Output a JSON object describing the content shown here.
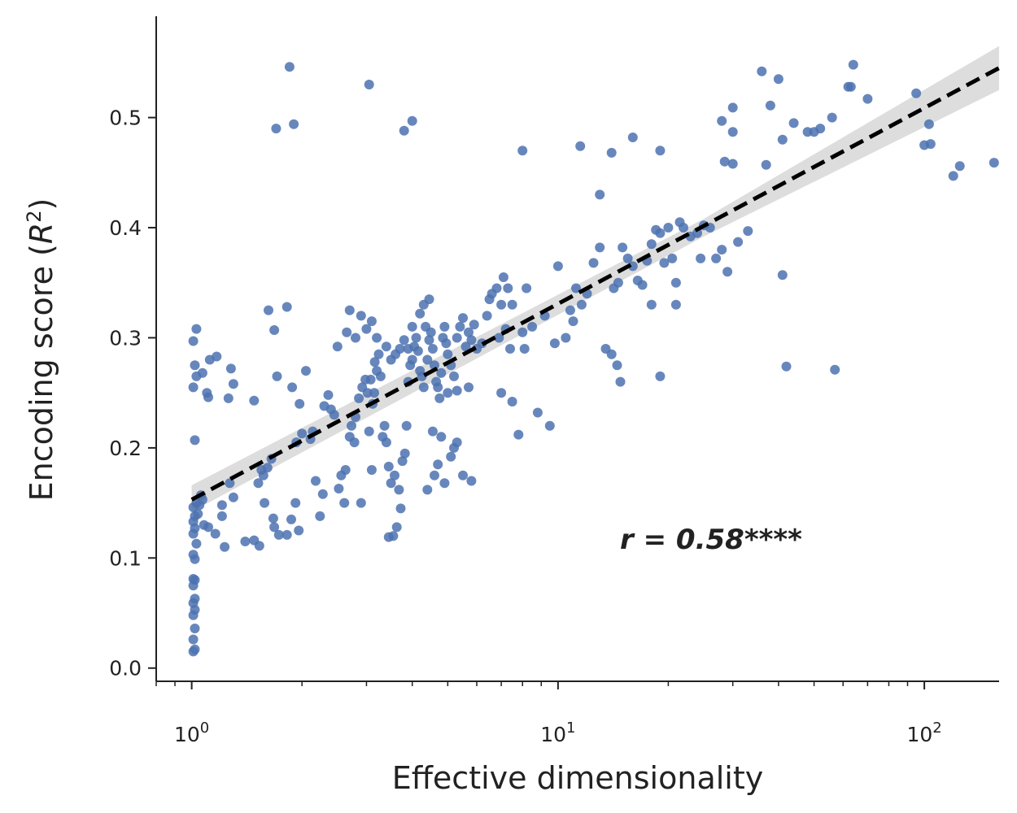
{
  "chart_data": {
    "type": "scatter",
    "title": "",
    "xlabel": "Effective dimensionality",
    "ylabel": "Encoding score (R²)",
    "ylabel_parts": {
      "text": "Encoding score (",
      "symbol": "R",
      "exp": "2",
      "close": ")"
    },
    "xscale": "log",
    "xlim": [
      0.8,
      160
    ],
    "ylim": [
      -0.012,
      0.592
    ],
    "x_ticks": [
      {
        "base": "10",
        "exp": "0",
        "value": 1
      },
      {
        "base": "10",
        "exp": "1",
        "value": 10
      },
      {
        "base": "10",
        "exp": "2",
        "value": 100
      }
    ],
    "y_ticks": [
      {
        "label": "0.0",
        "value": 0.0
      },
      {
        "label": "0.1",
        "value": 0.1
      },
      {
        "label": "0.2",
        "value": 0.2
      },
      {
        "label": "0.3",
        "value": 0.3
      },
      {
        "label": "0.4",
        "value": 0.4
      },
      {
        "label": "0.5",
        "value": 0.5
      }
    ],
    "annotation": "r = 0.58****",
    "grid": false,
    "colors": {
      "points": "#4c72b0",
      "fit_line": "#000000",
      "confidence_band": "#d9d9d9",
      "axes": "#222222"
    },
    "fit_line": {
      "x": [
        1.0,
        160
      ],
      "y": [
        0.153,
        0.545
      ]
    },
    "confidence_band": {
      "x": [
        1.0,
        25,
        160
      ],
      "lower": [
        0.142,
        0.392,
        0.525
      ],
      "upper": [
        0.166,
        0.408,
        0.565
      ]
    },
    "points": [
      {
        "x": 1.01,
        "y": 0.015
      },
      {
        "x": 1.02,
        "y": 0.017
      },
      {
        "x": 1.01,
        "y": 0.026
      },
      {
        "x": 1.02,
        "y": 0.036
      },
      {
        "x": 1.01,
        "y": 0.048
      },
      {
        "x": 1.02,
        "y": 0.053
      },
      {
        "x": 1.01,
        "y": 0.059
      },
      {
        "x": 1.02,
        "y": 0.063
      },
      {
        "x": 1.01,
        "y": 0.075
      },
      {
        "x": 1.02,
        "y": 0.08
      },
      {
        "x": 1.01,
        "y": 0.081
      },
      {
        "x": 1.02,
        "y": 0.099
      },
      {
        "x": 1.01,
        "y": 0.103
      },
      {
        "x": 1.03,
        "y": 0.113
      },
      {
        "x": 1.01,
        "y": 0.122
      },
      {
        "x": 1.02,
        "y": 0.127
      },
      {
        "x": 1.01,
        "y": 0.133
      },
      {
        "x": 1.02,
        "y": 0.138
      },
      {
        "x": 1.04,
        "y": 0.14
      },
      {
        "x": 1.01,
        "y": 0.146
      },
      {
        "x": 1.05,
        "y": 0.148
      },
      {
        "x": 1.03,
        "y": 0.15
      },
      {
        "x": 1.07,
        "y": 0.153
      },
      {
        "x": 1.06,
        "y": 0.157
      },
      {
        "x": 1.02,
        "y": 0.207
      },
      {
        "x": 1.01,
        "y": 0.255
      },
      {
        "x": 1.03,
        "y": 0.265
      },
      {
        "x": 1.02,
        "y": 0.275
      },
      {
        "x": 1.01,
        "y": 0.297
      },
      {
        "x": 1.03,
        "y": 0.308
      },
      {
        "x": 1.07,
        "y": 0.268
      },
      {
        "x": 1.1,
        "y": 0.25
      },
      {
        "x": 1.11,
        "y": 0.246
      },
      {
        "x": 1.12,
        "y": 0.28
      },
      {
        "x": 1.17,
        "y": 0.283
      },
      {
        "x": 1.08,
        "y": 0.13
      },
      {
        "x": 1.11,
        "y": 0.128
      },
      {
        "x": 1.16,
        "y": 0.122
      },
      {
        "x": 1.21,
        "y": 0.138
      },
      {
        "x": 1.23,
        "y": 0.11
      },
      {
        "x": 1.21,
        "y": 0.148
      },
      {
        "x": 1.3,
        "y": 0.155
      },
      {
        "x": 1.27,
        "y": 0.168
      },
      {
        "x": 1.26,
        "y": 0.245
      },
      {
        "x": 1.3,
        "y": 0.258
      },
      {
        "x": 1.28,
        "y": 0.272
      },
      {
        "x": 1.48,
        "y": 0.243
      },
      {
        "x": 1.4,
        "y": 0.115
      },
      {
        "x": 1.48,
        "y": 0.116
      },
      {
        "x": 1.53,
        "y": 0.111
      },
      {
        "x": 1.58,
        "y": 0.15
      },
      {
        "x": 1.52,
        "y": 0.168
      },
      {
        "x": 1.57,
        "y": 0.175
      },
      {
        "x": 1.55,
        "y": 0.18
      },
      {
        "x": 1.61,
        "y": 0.182
      },
      {
        "x": 1.65,
        "y": 0.19
      },
      {
        "x": 1.68,
        "y": 0.128
      },
      {
        "x": 1.73,
        "y": 0.121
      },
      {
        "x": 1.67,
        "y": 0.136
      },
      {
        "x": 1.82,
        "y": 0.121
      },
      {
        "x": 1.87,
        "y": 0.135
      },
      {
        "x": 1.92,
        "y": 0.15
      },
      {
        "x": 1.96,
        "y": 0.125
      },
      {
        "x": 1.62,
        "y": 0.325
      },
      {
        "x": 1.68,
        "y": 0.307
      },
      {
        "x": 1.71,
        "y": 0.265
      },
      {
        "x": 1.82,
        "y": 0.328
      },
      {
        "x": 1.88,
        "y": 0.255
      },
      {
        "x": 1.93,
        "y": 0.205
      },
      {
        "x": 1.97,
        "y": 0.24
      },
      {
        "x": 2.05,
        "y": 0.27
      },
      {
        "x": 2.0,
        "y": 0.213
      },
      {
        "x": 2.11,
        "y": 0.208
      },
      {
        "x": 2.14,
        "y": 0.215
      },
      {
        "x": 2.18,
        "y": 0.17
      },
      {
        "x": 2.24,
        "y": 0.138
      },
      {
        "x": 2.28,
        "y": 0.158
      },
      {
        "x": 2.3,
        "y": 0.238
      },
      {
        "x": 2.36,
        "y": 0.248
      },
      {
        "x": 2.4,
        "y": 0.235
      },
      {
        "x": 2.45,
        "y": 0.23
      },
      {
        "x": 2.5,
        "y": 0.292
      },
      {
        "x": 2.52,
        "y": 0.163
      },
      {
        "x": 2.56,
        "y": 0.175
      },
      {
        "x": 2.61,
        "y": 0.15
      },
      {
        "x": 2.63,
        "y": 0.18
      },
      {
        "x": 2.7,
        "y": 0.21
      },
      {
        "x": 2.73,
        "y": 0.22
      },
      {
        "x": 2.78,
        "y": 0.205
      },
      {
        "x": 2.8,
        "y": 0.228
      },
      {
        "x": 2.86,
        "y": 0.245
      },
      {
        "x": 2.92,
        "y": 0.255
      },
      {
        "x": 2.98,
        "y": 0.262
      },
      {
        "x": 3.02,
        "y": 0.25
      },
      {
        "x": 3.08,
        "y": 0.262
      },
      {
        "x": 3.12,
        "y": 0.24
      },
      {
        "x": 3.16,
        "y": 0.278
      },
      {
        "x": 3.2,
        "y": 0.27
      },
      {
        "x": 3.24,
        "y": 0.285
      },
      {
        "x": 3.28,
        "y": 0.265
      },
      {
        "x": 3.32,
        "y": 0.21
      },
      {
        "x": 3.36,
        "y": 0.22
      },
      {
        "x": 3.4,
        "y": 0.205
      },
      {
        "x": 3.45,
        "y": 0.183
      },
      {
        "x": 3.5,
        "y": 0.168
      },
      {
        "x": 3.58,
        "y": 0.175
      },
      {
        "x": 3.63,
        "y": 0.128
      },
      {
        "x": 3.68,
        "y": 0.162
      },
      {
        "x": 3.72,
        "y": 0.145
      },
      {
        "x": 3.76,
        "y": 0.188
      },
      {
        "x": 3.82,
        "y": 0.195
      },
      {
        "x": 3.86,
        "y": 0.22
      },
      {
        "x": 3.9,
        "y": 0.26
      },
      {
        "x": 3.95,
        "y": 0.275
      },
      {
        "x": 4.0,
        "y": 0.28
      },
      {
        "x": 4.05,
        "y": 0.292
      },
      {
        "x": 4.1,
        "y": 0.3
      },
      {
        "x": 4.15,
        "y": 0.288
      },
      {
        "x": 4.2,
        "y": 0.27
      },
      {
        "x": 4.25,
        "y": 0.265
      },
      {
        "x": 4.3,
        "y": 0.255
      },
      {
        "x": 4.35,
        "y": 0.31
      },
      {
        "x": 4.4,
        "y": 0.28
      },
      {
        "x": 4.45,
        "y": 0.298
      },
      {
        "x": 4.5,
        "y": 0.305
      },
      {
        "x": 4.55,
        "y": 0.29
      },
      {
        "x": 4.6,
        "y": 0.275
      },
      {
        "x": 4.65,
        "y": 0.26
      },
      {
        "x": 4.7,
        "y": 0.255
      },
      {
        "x": 4.75,
        "y": 0.245
      },
      {
        "x": 4.8,
        "y": 0.268
      },
      {
        "x": 4.85,
        "y": 0.3
      },
      {
        "x": 4.9,
        "y": 0.31
      },
      {
        "x": 4.95,
        "y": 0.295
      },
      {
        "x": 5.0,
        "y": 0.285
      },
      {
        "x": 5.1,
        "y": 0.275
      },
      {
        "x": 5.2,
        "y": 0.265
      },
      {
        "x": 5.3,
        "y": 0.3
      },
      {
        "x": 5.4,
        "y": 0.31
      },
      {
        "x": 5.5,
        "y": 0.318
      },
      {
        "x": 5.6,
        "y": 0.292
      },
      {
        "x": 5.7,
        "y": 0.305
      },
      {
        "x": 5.8,
        "y": 0.298
      },
      {
        "x": 4.4,
        "y": 0.162
      },
      {
        "x": 4.6,
        "y": 0.175
      },
      {
        "x": 4.7,
        "y": 0.185
      },
      {
        "x": 4.9,
        "y": 0.168
      },
      {
        "x": 5.1,
        "y": 0.192
      },
      {
        "x": 5.2,
        "y": 0.2
      },
      {
        "x": 5.3,
        "y": 0.205
      },
      {
        "x": 5.5,
        "y": 0.175
      },
      {
        "x": 5.8,
        "y": 0.17
      },
      {
        "x": 4.8,
        "y": 0.21
      },
      {
        "x": 4.55,
        "y": 0.215
      },
      {
        "x": 5.0,
        "y": 0.25
      },
      {
        "x": 5.3,
        "y": 0.252
      },
      {
        "x": 5.7,
        "y": 0.255
      },
      {
        "x": 3.55,
        "y": 0.12
      },
      {
        "x": 3.45,
        "y": 0.119
      },
      {
        "x": 2.9,
        "y": 0.15
      },
      {
        "x": 3.05,
        "y": 0.215
      },
      {
        "x": 3.1,
        "y": 0.18
      },
      {
        "x": 3.15,
        "y": 0.25
      },
      {
        "x": 2.9,
        "y": 0.32
      },
      {
        "x": 3.0,
        "y": 0.308
      },
      {
        "x": 3.1,
        "y": 0.315
      },
      {
        "x": 2.7,
        "y": 0.325
      },
      {
        "x": 2.65,
        "y": 0.305
      },
      {
        "x": 2.8,
        "y": 0.3
      },
      {
        "x": 3.2,
        "y": 0.3
      },
      {
        "x": 3.4,
        "y": 0.292
      },
      {
        "x": 3.5,
        "y": 0.28
      },
      {
        "x": 3.6,
        "y": 0.285
      },
      {
        "x": 3.7,
        "y": 0.29
      },
      {
        "x": 3.8,
        "y": 0.298
      },
      {
        "x": 3.9,
        "y": 0.29
      },
      {
        "x": 4.0,
        "y": 0.31
      },
      {
        "x": 4.2,
        "y": 0.322
      },
      {
        "x": 4.3,
        "y": 0.33
      },
      {
        "x": 4.45,
        "y": 0.335
      },
      {
        "x": 5.9,
        "y": 0.312
      },
      {
        "x": 6.0,
        "y": 0.29
      },
      {
        "x": 6.2,
        "y": 0.295
      },
      {
        "x": 6.4,
        "y": 0.32
      },
      {
        "x": 6.5,
        "y": 0.335
      },
      {
        "x": 6.6,
        "y": 0.34
      },
      {
        "x": 6.8,
        "y": 0.345
      },
      {
        "x": 7.0,
        "y": 0.33
      },
      {
        "x": 7.1,
        "y": 0.355
      },
      {
        "x": 7.3,
        "y": 0.345
      },
      {
        "x": 7.5,
        "y": 0.33
      },
      {
        "x": 7.2,
        "y": 0.308
      },
      {
        "x": 6.9,
        "y": 0.3
      },
      {
        "x": 7.4,
        "y": 0.29
      },
      {
        "x": 7.0,
        "y": 0.25
      },
      {
        "x": 7.5,
        "y": 0.242
      },
      {
        "x": 7.8,
        "y": 0.212
      },
      {
        "x": 8.1,
        "y": 0.29
      },
      {
        "x": 8.5,
        "y": 0.31
      },
      {
        "x": 8.0,
        "y": 0.305
      },
      {
        "x": 8.2,
        "y": 0.345
      },
      {
        "x": 8.8,
        "y": 0.232
      },
      {
        "x": 9.5,
        "y": 0.22
      },
      {
        "x": 9.2,
        "y": 0.32
      },
      {
        "x": 9.8,
        "y": 0.295
      },
      {
        "x": 10.0,
        "y": 0.365
      },
      {
        "x": 10.5,
        "y": 0.3
      },
      {
        "x": 10.8,
        "y": 0.325
      },
      {
        "x": 11.0,
        "y": 0.315
      },
      {
        "x": 11.2,
        "y": 0.345
      },
      {
        "x": 11.6,
        "y": 0.33
      },
      {
        "x": 12.0,
        "y": 0.34
      },
      {
        "x": 12.5,
        "y": 0.368
      },
      {
        "x": 13.0,
        "y": 0.382
      },
      {
        "x": 13.5,
        "y": 0.29
      },
      {
        "x": 14.0,
        "y": 0.285
      },
      {
        "x": 14.5,
        "y": 0.275
      },
      {
        "x": 14.8,
        "y": 0.26
      },
      {
        "x": 14.2,
        "y": 0.345
      },
      {
        "x": 14.6,
        "y": 0.35
      },
      {
        "x": 15.0,
        "y": 0.382
      },
      {
        "x": 15.5,
        "y": 0.372
      },
      {
        "x": 16.0,
        "y": 0.365
      },
      {
        "x": 16.5,
        "y": 0.352
      },
      {
        "x": 17.0,
        "y": 0.348
      },
      {
        "x": 17.5,
        "y": 0.37
      },
      {
        "x": 18.0,
        "y": 0.385
      },
      {
        "x": 18.5,
        "y": 0.398
      },
      {
        "x": 19.0,
        "y": 0.395
      },
      {
        "x": 19.5,
        "y": 0.368
      },
      {
        "x": 20.0,
        "y": 0.4
      },
      {
        "x": 20.5,
        "y": 0.372
      },
      {
        "x": 21.0,
        "y": 0.35
      },
      {
        "x": 21.5,
        "y": 0.405
      },
      {
        "x": 22.0,
        "y": 0.4
      },
      {
        "x": 23.0,
        "y": 0.392
      },
      {
        "x": 24.0,
        "y": 0.395
      },
      {
        "x": 25.0,
        "y": 0.402
      },
      {
        "x": 26.0,
        "y": 0.4
      },
      {
        "x": 24.5,
        "y": 0.372
      },
      {
        "x": 27.0,
        "y": 0.372
      },
      {
        "x": 28.0,
        "y": 0.38
      },
      {
        "x": 29.0,
        "y": 0.36
      },
      {
        "x": 31.0,
        "y": 0.387
      },
      {
        "x": 33.0,
        "y": 0.397
      },
      {
        "x": 18.0,
        "y": 0.33
      },
      {
        "x": 19.0,
        "y": 0.265
      },
      {
        "x": 21.0,
        "y": 0.33
      },
      {
        "x": 13.0,
        "y": 0.43
      },
      {
        "x": 14.0,
        "y": 0.468
      },
      {
        "x": 16.0,
        "y": 0.482
      },
      {
        "x": 19.0,
        "y": 0.47
      },
      {
        "x": 11.5,
        "y": 0.474
      },
      {
        "x": 8.0,
        "y": 0.47
      },
      {
        "x": 28.0,
        "y": 0.497
      },
      {
        "x": 30.0,
        "y": 0.509
      },
      {
        "x": 30.0,
        "y": 0.487
      },
      {
        "x": 28.5,
        "y": 0.46
      },
      {
        "x": 30.0,
        "y": 0.458
      },
      {
        "x": 37.0,
        "y": 0.457
      },
      {
        "x": 36.0,
        "y": 0.542
      },
      {
        "x": 38.0,
        "y": 0.511
      },
      {
        "x": 40.0,
        "y": 0.535
      },
      {
        "x": 41.0,
        "y": 0.48
      },
      {
        "x": 44.0,
        "y": 0.495
      },
      {
        "x": 48.0,
        "y": 0.487
      },
      {
        "x": 50.0,
        "y": 0.487
      },
      {
        "x": 52.0,
        "y": 0.49
      },
      {
        "x": 56.0,
        "y": 0.5
      },
      {
        "x": 62.0,
        "y": 0.528
      },
      {
        "x": 64.0,
        "y": 0.548
      },
      {
        "x": 63.0,
        "y": 0.528
      },
      {
        "x": 70.0,
        "y": 0.517
      },
      {
        "x": 95.0,
        "y": 0.522
      },
      {
        "x": 100.0,
        "y": 0.475
      },
      {
        "x": 103.0,
        "y": 0.494
      },
      {
        "x": 104.0,
        "y": 0.476
      },
      {
        "x": 120.0,
        "y": 0.447
      },
      {
        "x": 125.0,
        "y": 0.456
      },
      {
        "x": 155.0,
        "y": 0.459
      },
      {
        "x": 41.0,
        "y": 0.357
      },
      {
        "x": 42.0,
        "y": 0.274
      },
      {
        "x": 57.0,
        "y": 0.271
      },
      {
        "x": 1.85,
        "y": 0.546
      },
      {
        "x": 1.9,
        "y": 0.494
      },
      {
        "x": 1.7,
        "y": 0.49
      },
      {
        "x": 3.05,
        "y": 0.53
      },
      {
        "x": 3.8,
        "y": 0.488
      },
      {
        "x": 4.0,
        "y": 0.497
      }
    ]
  }
}
